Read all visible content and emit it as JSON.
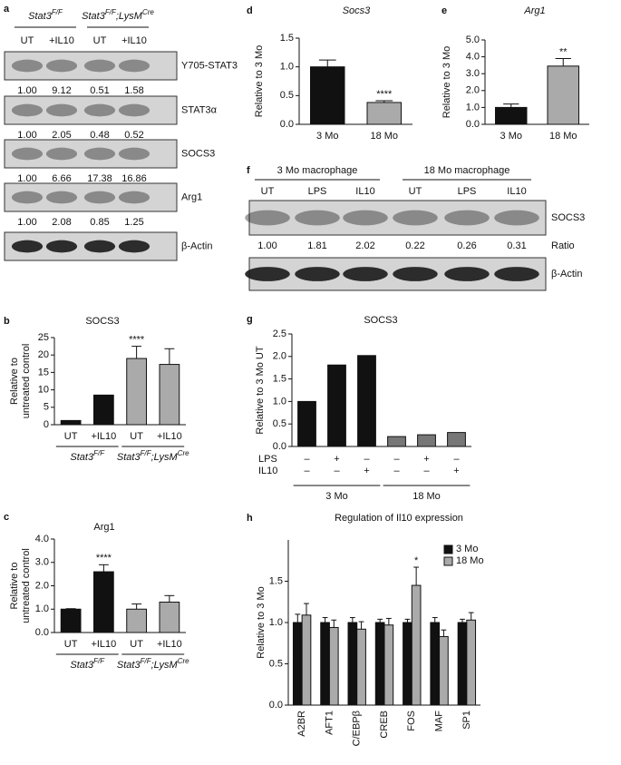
{
  "blots": [
    {
      "panel": "a",
      "groups": [
        [
          {
            "text": "Stat3",
            "italic": true
          },
          {
            "text": "F/F",
            "italic": true,
            "sup": true
          }
        ],
        [
          {
            "text": "Stat3",
            "italic": true
          },
          {
            "text": "F/F",
            "italic": true,
            "sup": true
          },
          {
            "text": ";LysM",
            "italic": true
          },
          {
            "text": "Cre",
            "italic": true,
            "sup": true
          }
        ]
      ],
      "columns": [
        "UT",
        "+IL10",
        "UT",
        "+IL10"
      ],
      "bands": [
        {
          "name": "Y705-STAT3",
          "ratios": [
            "1.00",
            "9.12",
            "0.51",
            "1.58"
          ]
        },
        {
          "name": "STAT3α",
          "ratios": [
            "1.00",
            "2.05",
            "0.48",
            "0.52"
          ]
        },
        {
          "name": "SOCS3",
          "ratios": [
            "1.00",
            "6.66",
            "17.38",
            "16.86"
          ]
        },
        {
          "name": "Arg1",
          "ratios": [
            "1.00",
            "2.08",
            "0.85",
            "1.25"
          ]
        },
        {
          "name": "β-Actin"
        }
      ]
    },
    {
      "panel": "f",
      "groups": [
        [
          {
            "text": "3 Mo macrophage"
          }
        ],
        [
          {
            "text": "18 Mo macrophage"
          }
        ]
      ],
      "columns": [
        "UT",
        "LPS",
        "IL10",
        "UT",
        "LPS",
        "IL10"
      ],
      "bands": [
        {
          "name": "SOCS3",
          "ratios": [
            "1.00",
            "1.81",
            "2.02",
            "0.22",
            "0.26",
            "0.31"
          ],
          "ratio_label": "Ratio"
        },
        {
          "name": "β-Actin"
        }
      ]
    }
  ],
  "chart_data": [
    {
      "type": "bar",
      "panel": "b",
      "title": "SOCS3",
      "ylabel": [
        "Relative to",
        "untreated control"
      ],
      "categories": [
        "UT",
        "+IL10",
        "UT",
        "+IL10"
      ],
      "values": [
        1.2,
        8.5,
        19,
        17.3
      ],
      "errors": [
        null,
        null,
        3.5,
        4.5
      ],
      "colors": [
        "#111111",
        "#111111",
        "#aaaaaa",
        "#aaaaaa"
      ],
      "significance": [
        null,
        null,
        "****",
        null
      ],
      "groups": [
        [
          {
            "text": "Stat3",
            "italic": true
          },
          {
            "text": "F/F",
            "italic": true,
            "sup": true
          }
        ],
        [
          {
            "text": "Stat3",
            "italic": true
          },
          {
            "text": "F/F",
            "italic": true,
            "sup": true
          },
          {
            "text": ";LysM",
            "italic": true
          },
          {
            "text": "Cre",
            "italic": true,
            "sup": true
          }
        ]
      ],
      "ylim": [
        0,
        25
      ],
      "yticks": [
        0,
        5,
        10,
        15,
        20,
        25
      ]
    },
    {
      "type": "bar",
      "panel": "c",
      "title": "Arg1",
      "ylabel": [
        "Relative to",
        "untreated control"
      ],
      "categories": [
        "UT",
        "+IL10",
        "UT",
        "+IL10"
      ],
      "values": [
        1.0,
        2.6,
        1.0,
        1.3
      ],
      "errors": [
        0.02,
        0.3,
        0.22,
        0.28
      ],
      "colors": [
        "#111111",
        "#111111",
        "#aaaaaa",
        "#aaaaaa"
      ],
      "significance": [
        null,
        "****",
        null,
        null
      ],
      "groups": [
        [
          {
            "text": "Stat3",
            "italic": true
          },
          {
            "text": "F/F",
            "italic": true,
            "sup": true
          }
        ],
        [
          {
            "text": "Stat3",
            "italic": true
          },
          {
            "text": "F/F",
            "italic": true,
            "sup": true
          },
          {
            "text": ";LysM",
            "italic": true
          },
          {
            "text": "Cre",
            "italic": true,
            "sup": true
          }
        ]
      ],
      "ylim": [
        0,
        4
      ],
      "yticks": [
        {
          "value": 0,
          "label": "0.0"
        },
        {
          "value": 1,
          "label": "1.0"
        },
        {
          "value": 2,
          "label": "2.0"
        },
        {
          "value": 3,
          "label": "3.0"
        },
        {
          "value": 4,
          "label": "4.0"
        }
      ]
    },
    {
      "type": "bar",
      "panel": "d",
      "title": "Socs3",
      "title_italic": true,
      "ylabel": [
        "Relative to 3 Mo"
      ],
      "categories": [
        "3 Mo",
        "18 Mo"
      ],
      "values": [
        1.0,
        0.38
      ],
      "errors": [
        0.12,
        0.03
      ],
      "colors": [
        "#111111",
        "#aaaaaa"
      ],
      "significance": [
        null,
        "****"
      ],
      "ylim": [
        0,
        1.5
      ],
      "yticks": [
        {
          "value": 0,
          "label": "0.0"
        },
        0.5,
        {
          "value": 1,
          "label": "1.0"
        },
        1.5
      ]
    },
    {
      "type": "bar",
      "panel": "e",
      "title": "Arg1",
      "title_italic": true,
      "ylabel": [
        "Relative to 3 Mo"
      ],
      "categories": [
        "3 Mo",
        "18 Mo"
      ],
      "values": [
        1.0,
        3.45
      ],
      "errors": [
        0.2,
        0.45
      ],
      "colors": [
        "#111111",
        "#aaaaaa"
      ],
      "significance": [
        null,
        "**"
      ],
      "ylim": [
        0,
        5
      ],
      "yticks": [
        {
          "value": 0,
          "label": "0.0"
        },
        {
          "value": 1,
          "label": "1.0"
        },
        {
          "value": 2,
          "label": "2.0"
        },
        {
          "value": 3,
          "label": "3.0"
        },
        {
          "value": 4,
          "label": "4.0"
        },
        {
          "value": 5,
          "label": "5.0"
        }
      ]
    },
    {
      "type": "bar",
      "panel": "g",
      "title": "SOCS3",
      "ylabel": [
        "Relative to 3 Mo UT"
      ],
      "values": [
        1.0,
        1.81,
        2.02,
        0.22,
        0.26,
        0.31
      ],
      "colors": [
        "#111111",
        "#111111",
        "#111111",
        "#777777",
        "#777777",
        "#777777"
      ],
      "conditions": [
        {
          "name": "LPS",
          "signs": [
            "–",
            "+",
            "–",
            "–",
            "+",
            "–"
          ]
        },
        {
          "name": "IL10",
          "signs": [
            "–",
            "–",
            "+",
            "–",
            "–",
            "+"
          ]
        }
      ],
      "groups": [
        [
          {
            "text": "3 Mo"
          }
        ],
        [
          {
            "text": "18 Mo"
          }
        ]
      ],
      "ylim": [
        0,
        2.5
      ],
      "yticks": [
        {
          "value": 0,
          "label": "0.0"
        },
        0.5,
        {
          "value": 1,
          "label": "1.0"
        },
        1.5,
        {
          "value": 2,
          "label": "2.0"
        },
        2.5
      ]
    },
    {
      "type": "grouped_bar",
      "panel": "h",
      "title": "Regulation of Il10 expression",
      "ylabel": [
        "Relative to 3 Mo"
      ],
      "categories": [
        "A2BR",
        "AFT1",
        "C/EBPβ",
        "CREB",
        "FOS",
        "MAF",
        "SP1"
      ],
      "series": [
        {
          "name": "3 Mo",
          "color": "#111111",
          "values": [
            1.0,
            1.0,
            1.0,
            1.0,
            1.0,
            1.0,
            1.0
          ],
          "errors": [
            0.1,
            0.06,
            0.06,
            0.04,
            0.04,
            0.06,
            0.04
          ]
        },
        {
          "name": "18 Mo",
          "color": "#aaaaaa",
          "values": [
            1.09,
            0.94,
            0.92,
            0.97,
            1.45,
            0.83,
            1.03
          ],
          "errors": [
            0.14,
            0.09,
            0.09,
            0.08,
            0.22,
            0.08,
            0.09
          ],
          "significance": [
            null,
            null,
            null,
            null,
            "*",
            null,
            null
          ]
        }
      ],
      "legend": "upper right",
      "ylim": [
        0,
        2
      ],
      "yticks": [
        {
          "value": 0,
          "label": "0.0"
        },
        0.5,
        {
          "value": 1,
          "label": "1.0"
        },
        1.5
      ]
    }
  ]
}
